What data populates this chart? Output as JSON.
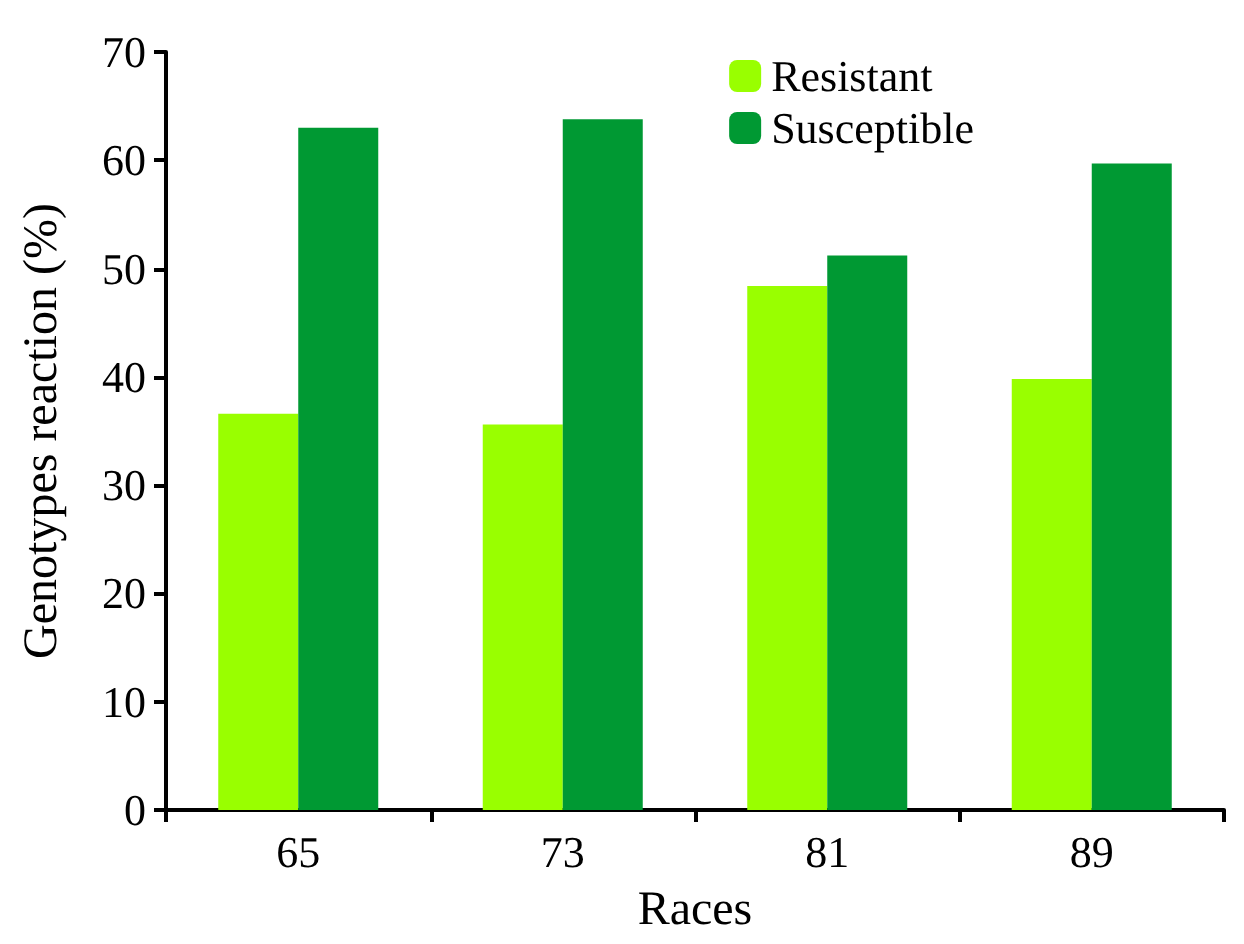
{
  "chart_data": {
    "type": "bar",
    "xlabel": "Races",
    "ylabel": "Genotypes reaction (%)",
    "categories": [
      "65",
      "73",
      "81",
      "89"
    ],
    "series": [
      {
        "name": "Resistant",
        "color": "#99ff00",
        "values": [
          36.6,
          35.6,
          48.4,
          39.8
        ]
      },
      {
        "name": "Susceptible",
        "color": "#009933",
        "values": [
          63.0,
          63.8,
          51.2,
          59.7
        ]
      }
    ],
    "ylim": [
      0,
      70
    ],
    "yticks": [
      0,
      10,
      20,
      30,
      40,
      50,
      60,
      70
    ],
    "grid": false,
    "legend": "top right"
  }
}
